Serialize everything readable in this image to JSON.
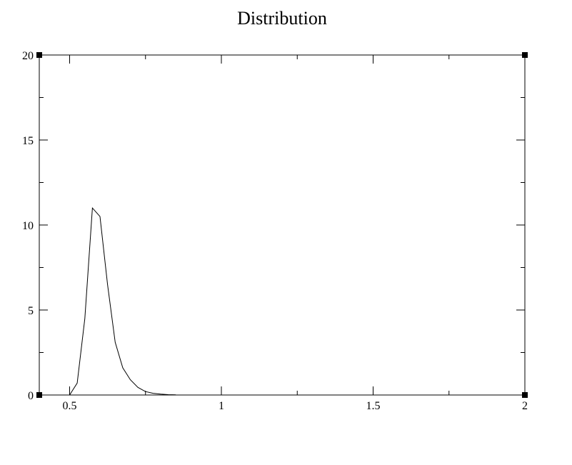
{
  "chart_data": {
    "type": "line",
    "title": "Distribution",
    "xlabel": "",
    "ylabel": "",
    "xlim": [
      0.4,
      2
    ],
    "ylim": [
      0,
      20
    ],
    "x_major_ticks": [
      0.5,
      1,
      1.5,
      2
    ],
    "x_tick_labels": [
      "0.5",
      "1",
      "1.5",
      "2"
    ],
    "x_minor_ticks": [
      0.75,
      1.25,
      1.75
    ],
    "y_major_ticks": [
      0,
      5,
      10,
      15,
      20
    ],
    "y_tick_labels": [
      "0",
      "5",
      "10",
      "15",
      "20"
    ],
    "y_minor_ticks": [
      2.5,
      7.5,
      12.5,
      17.5
    ],
    "grid": false,
    "series": [
      {
        "x": [
          0.5,
          0.525,
          0.55,
          0.575,
          0.6,
          0.625,
          0.65,
          0.675,
          0.7,
          0.725,
          0.75,
          0.775,
          0.8,
          0.825,
          0.85
        ],
        "y": [
          0,
          0.7,
          4.5,
          11.0,
          10.5,
          6.5,
          3.1,
          1.6,
          0.9,
          0.45,
          0.2,
          0.1,
          0.05,
          0.02,
          0.01
        ]
      }
    ]
  }
}
